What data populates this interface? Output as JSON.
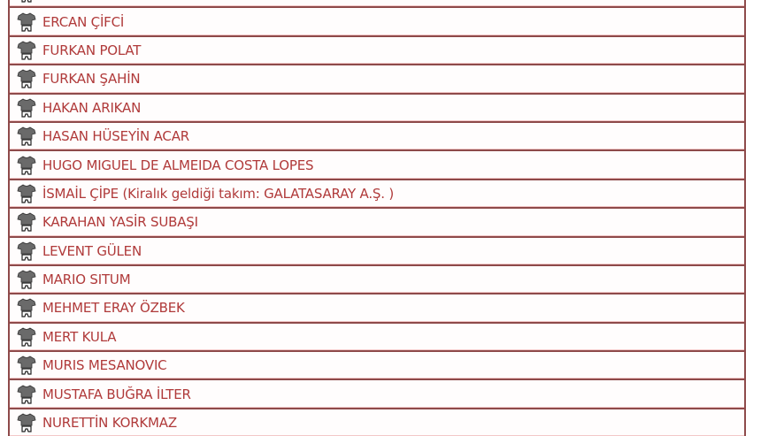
{
  "players": [
    {
      "name": ""
    },
    {
      "name": "ERCAN ÇİFCİ"
    },
    {
      "name": "FURKAN POLAT"
    },
    {
      "name": "FURKAN ŞAHİN"
    },
    {
      "name": "HAKAN ARIKAN"
    },
    {
      "name": "HASAN HÜSEYİN ACAR"
    },
    {
      "name": "HUGO MIGUEL DE ALMEIDA COSTA LOPES"
    },
    {
      "name": "İSMAİL ÇİPE (Kiralık geldiği takım: GALATASARAY A.Ş. )"
    },
    {
      "name": "KARAHAN YASİR SUBAŞI"
    },
    {
      "name": "LEVENT GÜLEN"
    },
    {
      "name": "MARIO SITUM"
    },
    {
      "name": "MEHMET ERAY ÖZBEK"
    },
    {
      "name": "MERT KULA"
    },
    {
      "name": "MURIS MESANOVIC"
    },
    {
      "name": "MUSTAFA BUĞRA İLTER"
    },
    {
      "name": "NURETTİN KORKMAZ"
    }
  ],
  "icon": "jersey-icon",
  "colors": {
    "text": "#b03a3a",
    "border": "#8e4a4a"
  }
}
